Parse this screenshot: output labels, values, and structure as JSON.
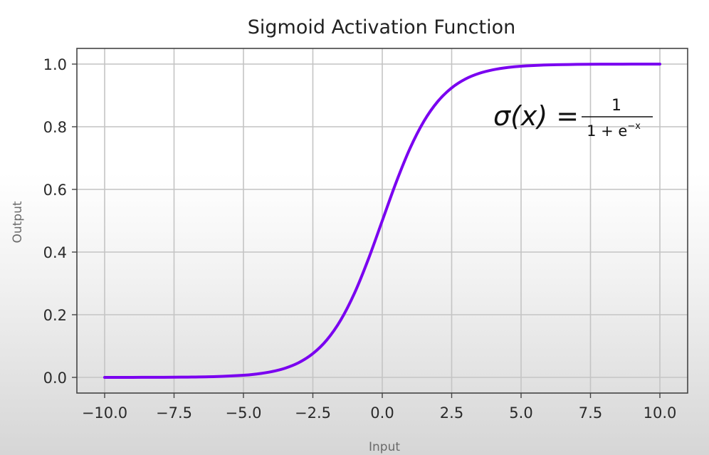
{
  "chart_data": {
    "type": "line",
    "title": "Sigmoid Activation Function",
    "xlabel": "Input",
    "ylabel": "Output",
    "xlim": [
      -11,
      11
    ],
    "ylim": [
      -0.05,
      1.05
    ],
    "xticks": [
      -10,
      -7.5,
      -5,
      -2.5,
      0,
      2.5,
      5,
      7.5,
      10
    ],
    "xtick_labels": [
      "−10.0",
      "−7.5",
      "−5.0",
      "−2.5",
      "0.0",
      "2.5",
      "5.0",
      "7.5",
      "10.0"
    ],
    "yticks": [
      0,
      0.2,
      0.4,
      0.6,
      0.8,
      1.0
    ],
    "ytick_labels": [
      "0.0",
      "0.2",
      "0.4",
      "0.6",
      "0.8",
      "1.0"
    ],
    "grid": true,
    "series": [
      {
        "color": "#7a00f0",
        "x": [
          -10,
          -9,
          -8,
          -7,
          -6,
          -5,
          -4.5,
          -4,
          -3.5,
          -3,
          -2.5,
          -2,
          -1.5,
          -1,
          -0.5,
          0,
          0.5,
          1,
          1.5,
          2,
          2.5,
          3,
          3.5,
          4,
          4.5,
          5,
          6,
          7,
          8,
          9,
          10
        ],
        "y": [
          0.0,
          0.0001,
          0.0003,
          0.0009,
          0.0025,
          0.0067,
          0.011,
          0.018,
          0.0293,
          0.0474,
          0.0759,
          0.1192,
          0.1824,
          0.2689,
          0.3775,
          0.5,
          0.6225,
          0.7311,
          0.8176,
          0.8808,
          0.9241,
          0.9526,
          0.9707,
          0.982,
          0.989,
          0.9933,
          0.9975,
          0.9991,
          0.9997,
          0.9999,
          1.0
        ]
      }
    ],
    "annotations": [
      {
        "kind": "formula",
        "lhs": "σ(x) =",
        "numerator": "1",
        "denominator_base": "1 + e",
        "denominator_exponent": "−x"
      }
    ]
  }
}
